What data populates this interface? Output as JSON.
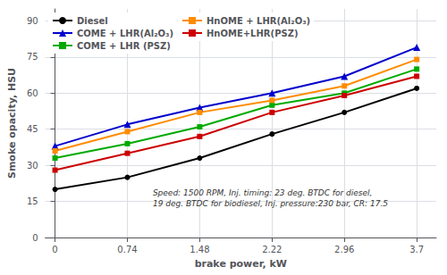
{
  "chart_data": {
    "type": "line",
    "xlabel": "brake power, kW",
    "ylabel": "Smoke opacity, HSU",
    "x": [
      0,
      0.74,
      1.48,
      2.22,
      2.96,
      3.7
    ],
    "series": [
      {
        "name": "Diesel",
        "color": "#000000",
        "marker": "circle",
        "values": [
          20,
          25,
          33,
          43,
          52,
          62
        ]
      },
      {
        "name": "COME + LHR(Al₂O₃)",
        "color": "#0000CC",
        "marker": "triangle",
        "values": [
          38,
          47,
          54,
          60,
          67,
          79
        ]
      },
      {
        "name": "COME + LHR (PSZ)",
        "color": "#00AA00",
        "marker": "square",
        "values": [
          33,
          39,
          46,
          55,
          60,
          70
        ]
      },
      {
        "name": "HnOME + LHR(Al₂O₃)",
        "color": "#FF8C00",
        "marker": "square",
        "values": [
          36,
          44,
          52,
          57,
          63,
          74
        ]
      },
      {
        "name": "HnOME+LHR(PSZ)",
        "color": "#CC0000",
        "marker": "square",
        "values": [
          28,
          35,
          42,
          52,
          59,
          67
        ]
      }
    ],
    "xlim": [
      -0.1,
      3.9
    ],
    "xticks": [
      0,
      0.74,
      1.48,
      2.22,
      2.96,
      3.7
    ],
    "ylim": [
      0,
      95
    ],
    "yticks": [
      0,
      15,
      30,
      45,
      60,
      75,
      90
    ],
    "grid": true,
    "legend": "upper left",
    "annotation": {
      "text": "Speed: 1500 RPM, Inj. timing: 23 deg. BTDC for diesel,\n19 deg. BTDC for biodiesel, Inj. pressure:230 bar, CR: 17.5",
      "x": 1.0,
      "y": 12
    }
  }
}
